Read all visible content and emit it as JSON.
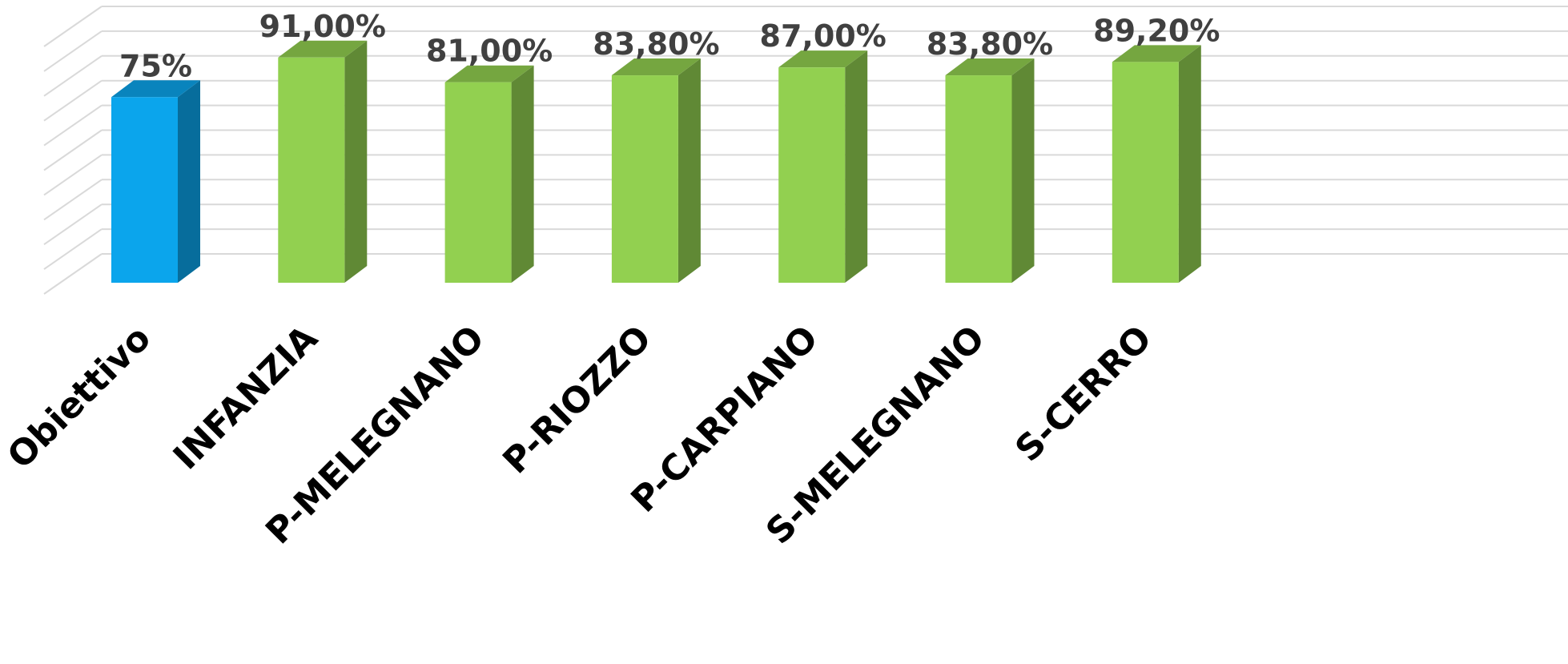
{
  "chart_data": {
    "type": "bar3d",
    "categories": [
      "Obiettivo",
      "INFANZIA",
      "P-MELEGNANO",
      "P-RIOZZO",
      "P-CARPIANO",
      "S-MELEGNANO",
      "S-CERRO"
    ],
    "values": [
      75,
      91,
      81,
      83.8,
      87,
      83.8,
      89.2
    ],
    "value_labels": [
      "75%",
      "91,00%",
      "81,00%",
      "83,80%",
      "87,00%",
      "83,80%",
      "89,20%"
    ],
    "colors": [
      "#0ba5ec",
      "#92d050",
      "#92d050",
      "#92d050",
      "#92d050",
      "#92d050",
      "#92d050"
    ],
    "ylim": [
      0,
      100
    ],
    "yticks": [
      0,
      10,
      20,
      30,
      40,
      50,
      60,
      70,
      80,
      90,
      100
    ],
    "grid": true
  }
}
